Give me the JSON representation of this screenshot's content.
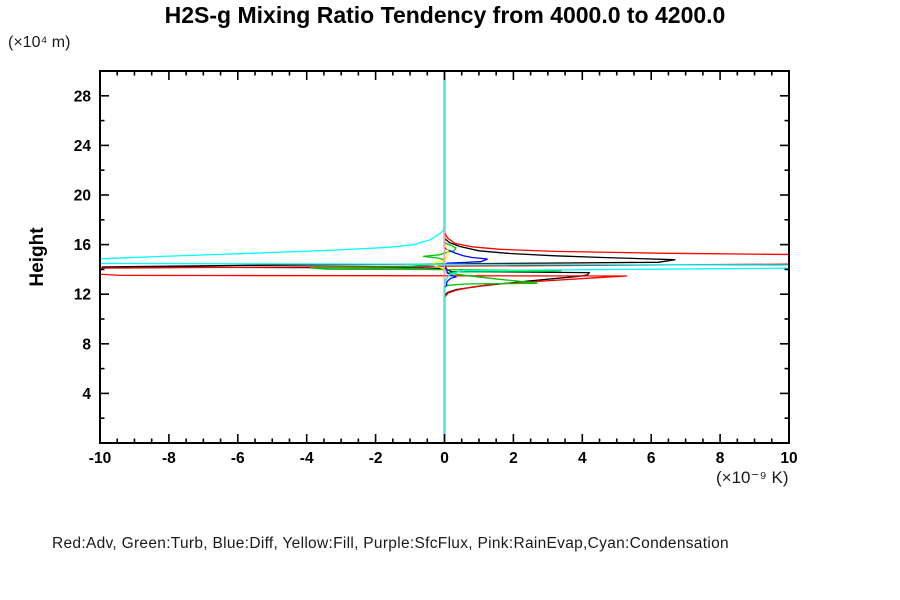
{
  "header": {
    "title": "H2S-g Mixing Ratio Tendency from 4000.0 to 4200.0",
    "y_units_label": "(×10⁴ m)"
  },
  "axes": {
    "y_label": "Height",
    "x_units_label": "(×10⁻⁹ K)"
  },
  "legend": {
    "text": "Red:Adv, Green:Turb, Blue:Diff, Yellow:Fill, Purple:SfcFlux, Pink:RainEvap,Cyan:Condensation"
  },
  "chart_data": {
    "type": "line",
    "title": "H2S-g Mixing Ratio Tendency from 4000.0 to 4200.0",
    "xlabel": "(×10⁻⁹ K)",
    "ylabel": "Height (×10⁴ m)",
    "orientation": "vertical profiles: each series plots tendency value (x) versus height (y)",
    "xlim": [
      -10,
      10
    ],
    "ylim": [
      0,
      30
    ],
    "grid": false,
    "legend_position": "below plot as single text line",
    "background": "#ffffff",
    "axis_color": "#000000",
    "x_major_ticks": [
      -10,
      -8,
      -6,
      -4,
      -2,
      0,
      2,
      4,
      6,
      8,
      10
    ],
    "x_tick_labels": [
      "-10",
      "-8",
      "-6",
      "-4",
      "-2",
      "0",
      "2",
      "4",
      "6",
      "8",
      "10"
    ],
    "x_minor_tick_step": 0.5,
    "y_major_ticks": [
      4,
      8,
      12,
      16,
      20,
      24,
      28
    ],
    "y_tick_labels": [
      "4",
      "8",
      "12",
      "16",
      "20",
      "24",
      "28"
    ],
    "y_minor_ticks": [
      2,
      6,
      10,
      14,
      18,
      22,
      26,
      30
    ],
    "zero_line": {
      "x": 0,
      "visible_color": "#00ffff",
      "note": "vertical line at x=0 spanning full height; appears pink where Condensation departs from zero"
    },
    "series": [
      {
        "name": "black-unlabeled",
        "legend_label": null,
        "color": "#000000",
        "points": [
          [
            0,
            30
          ],
          [
            0,
            16.5
          ],
          [
            0.15,
            16.15
          ],
          [
            0.45,
            15.85
          ],
          [
            1.0,
            15.5
          ],
          [
            1.9,
            15.28
          ],
          [
            3.2,
            15.1
          ],
          [
            4.6,
            14.96
          ],
          [
            6.7,
            14.78
          ],
          [
            6.2,
            14.57
          ],
          [
            3.4,
            14.52
          ],
          [
            0.8,
            14.47
          ],
          [
            -1.5,
            14.4
          ],
          [
            -5.9,
            14.32
          ],
          [
            -9.95,
            14.19
          ],
          [
            -0.6,
            14.12
          ],
          [
            0,
            14.07
          ],
          [
            0.2,
            13.82
          ],
          [
            4.2,
            13.74
          ],
          [
            4.15,
            13.56
          ],
          [
            3.9,
            13.44
          ],
          [
            2.4,
            13.06
          ],
          [
            1.1,
            12.68
          ],
          [
            0.35,
            12.38
          ],
          [
            0.1,
            12.15
          ],
          [
            0,
            11.9
          ],
          [
            0,
            0
          ]
        ]
      },
      {
        "name": "adv",
        "legend_label": "Red:Adv",
        "color": "#ff0000",
        "points": [
          [
            0,
            30
          ],
          [
            0,
            17.0
          ],
          [
            0.08,
            16.55
          ],
          [
            0.3,
            16.1
          ],
          [
            0.8,
            15.82
          ],
          [
            1.6,
            15.62
          ],
          [
            3.2,
            15.45
          ],
          [
            6.5,
            15.3
          ],
          [
            9.5,
            15.22
          ],
          [
            13,
            15.14
          ],
          [
            13,
            14.47
          ],
          [
            -13,
            14.06
          ],
          [
            -9.4,
            13.52
          ],
          [
            5.3,
            13.47
          ],
          [
            4.35,
            13.32
          ],
          [
            2.6,
            13.02
          ],
          [
            1.5,
            12.82
          ],
          [
            0.8,
            12.58
          ],
          [
            0.35,
            12.33
          ],
          [
            0.1,
            12.08
          ],
          [
            0,
            11.75
          ],
          [
            0,
            0
          ]
        ]
      },
      {
        "name": "turb",
        "legend_label": "Green:Turb",
        "color": "#00c400",
        "points": [
          [
            0,
            30
          ],
          [
            0,
            16.15
          ],
          [
            0.2,
            15.92
          ],
          [
            0.33,
            15.72
          ],
          [
            0.28,
            15.5
          ],
          [
            0.1,
            15.4
          ],
          [
            -0.15,
            15.18
          ],
          [
            -0.62,
            15.05
          ],
          [
            -0.2,
            14.92
          ],
          [
            0,
            14.78
          ],
          [
            0,
            14.48
          ],
          [
            -1.2,
            14.2
          ],
          [
            -3.9,
            14.13
          ],
          [
            -3.4,
            14.02
          ],
          [
            -0.5,
            13.99
          ],
          [
            3.4,
            13.9
          ],
          [
            2.8,
            13.83
          ],
          [
            0.35,
            13.8
          ],
          [
            0.07,
            13.72
          ],
          [
            0.7,
            13.48
          ],
          [
            1.6,
            13.2
          ],
          [
            2.4,
            12.98
          ],
          [
            2.7,
            12.88
          ],
          [
            0.6,
            12.82
          ],
          [
            0.1,
            12.72
          ],
          [
            0,
            12.6
          ],
          [
            0,
            0
          ]
        ]
      },
      {
        "name": "diff",
        "legend_label": "Blue:Diff",
        "color": "#0000ff",
        "points": [
          [
            0,
            30
          ],
          [
            0,
            15.75
          ],
          [
            0.12,
            15.55
          ],
          [
            0.3,
            15.33
          ],
          [
            0.55,
            15.1
          ],
          [
            0.8,
            14.96
          ],
          [
            1.25,
            14.84
          ],
          [
            1.05,
            14.62
          ],
          [
            0.45,
            14.55
          ],
          [
            0.08,
            14.5
          ],
          [
            0,
            14.33
          ],
          [
            0.06,
            14.05
          ],
          [
            0.08,
            13.7
          ],
          [
            0.32,
            13.38
          ],
          [
            0.18,
            13.28
          ],
          [
            0.07,
            13.0
          ],
          [
            0.06,
            12.72
          ],
          [
            0,
            12.5
          ],
          [
            0,
            0
          ]
        ]
      },
      {
        "name": "fill",
        "legend_label": "Yellow:Fill",
        "color": "#ffff00",
        "points": [
          [
            0,
            30
          ],
          [
            0,
            15.9
          ],
          [
            0.1,
            15.62
          ],
          [
            0.1,
            15.2
          ],
          [
            0.08,
            14.95
          ],
          [
            0,
            14.73
          ],
          [
            -0.3,
            14.56
          ],
          [
            -0.28,
            14.3
          ],
          [
            -0.12,
            14.15
          ],
          [
            0,
            14.0
          ],
          [
            0,
            0
          ]
        ]
      },
      {
        "name": "sfcflux",
        "legend_label": "Purple:SfcFlux",
        "color": "#b000d0",
        "points": [
          [
            0,
            30
          ],
          [
            0,
            0
          ]
        ]
      },
      {
        "name": "rainevap",
        "legend_label": "Pink:RainEvap",
        "color": "#ff9f9f",
        "points": [
          [
            0,
            30
          ],
          [
            0,
            0
          ]
        ]
      },
      {
        "name": "condensation",
        "legend_label": "Cyan:Condensation",
        "color": "#00ffff",
        "points": [
          [
            0,
            30
          ],
          [
            0,
            17.3
          ],
          [
            -0.12,
            16.9
          ],
          [
            -0.4,
            16.4
          ],
          [
            -0.9,
            16.0
          ],
          [
            -1.6,
            15.78
          ],
          [
            -3.2,
            15.56
          ],
          [
            -5.6,
            15.3
          ],
          [
            -8.2,
            15.05
          ],
          [
            -9.56,
            14.9
          ],
          [
            -13,
            14.5
          ],
          [
            13,
            14.32
          ],
          [
            12,
            14.14
          ],
          [
            0.5,
            13.9
          ],
          [
            0.15,
            13.58
          ],
          [
            0.05,
            13.2
          ],
          [
            0,
            12.55
          ],
          [
            0,
            0
          ]
        ]
      }
    ]
  }
}
